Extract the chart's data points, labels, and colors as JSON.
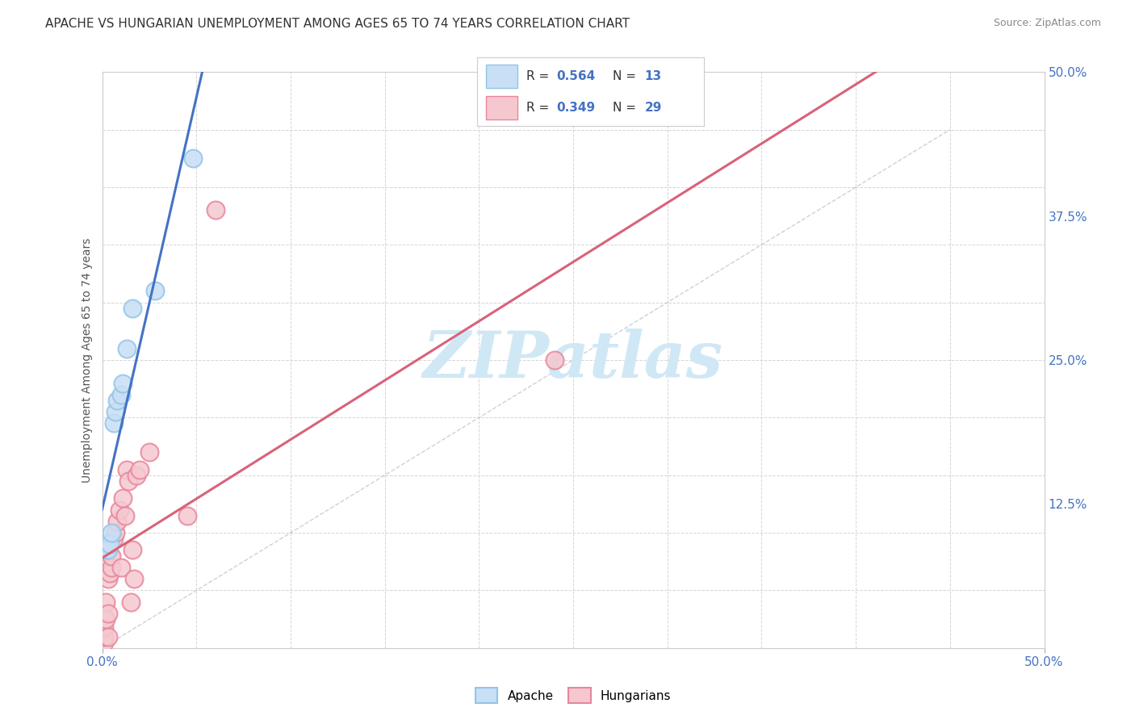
{
  "title": "APACHE VS HUNGARIAN UNEMPLOYMENT AMONG AGES 65 TO 74 YEARS CORRELATION CHART",
  "source": "Source: ZipAtlas.com",
  "ylabel": "Unemployment Among Ages 65 to 74 years",
  "xlim": [
    0.0,
    0.5
  ],
  "ylim": [
    0.0,
    0.5
  ],
  "xticks": [
    0.0,
    0.5
  ],
  "yticks": [
    0.0,
    0.125,
    0.25,
    0.375,
    0.5
  ],
  "xtick_labels": [
    "0.0%",
    "50.0%"
  ],
  "ytick_labels": [
    "",
    "12.5%",
    "25.0%",
    "37.5%",
    "50.0%"
  ],
  "apache_color": "#92C5E8",
  "apache_face": "#C8DFF5",
  "hungarian_color": "#E8869A",
  "hungarian_face": "#F5C8D0",
  "apache_line_color": "#4472C4",
  "hungarian_line_color": "#D9627A",
  "apache_R": "0.564",
  "apache_N": "13",
  "hungarian_R": "0.349",
  "hungarian_N": "29",
  "apache_x": [
    0.002,
    0.003,
    0.004,
    0.005,
    0.006,
    0.007,
    0.008,
    0.01,
    0.011,
    0.013,
    0.016,
    0.028,
    0.048
  ],
  "apache_y": [
    0.085,
    0.085,
    0.09,
    0.1,
    0.195,
    0.205,
    0.215,
    0.22,
    0.23,
    0.26,
    0.295,
    0.31,
    0.425
  ],
  "hungarian_x": [
    0.001,
    0.001,
    0.001,
    0.002,
    0.002,
    0.003,
    0.003,
    0.003,
    0.004,
    0.005,
    0.005,
    0.006,
    0.007,
    0.008,
    0.009,
    0.01,
    0.011,
    0.012,
    0.013,
    0.014,
    0.015,
    0.016,
    0.017,
    0.018,
    0.02,
    0.025,
    0.045,
    0.06,
    0.24
  ],
  "hungarian_y": [
    0.005,
    0.01,
    0.018,
    0.025,
    0.04,
    0.01,
    0.03,
    0.06,
    0.065,
    0.07,
    0.08,
    0.095,
    0.1,
    0.11,
    0.12,
    0.07,
    0.13,
    0.115,
    0.155,
    0.145,
    0.04,
    0.085,
    0.06,
    0.15,
    0.155,
    0.17,
    0.115,
    0.38,
    0.25
  ],
  "watermark": "ZIPatlas",
  "bg_color": "#ffffff",
  "grid_color": "#d5d5d5",
  "label_color": "#4472C4",
  "title_color": "#333333",
  "source_color": "#888888",
  "diag_line_color": "#AAAACC",
  "inner_grid_ticks": [
    0.0,
    0.05,
    0.1,
    0.15,
    0.2,
    0.25,
    0.3,
    0.35,
    0.4,
    0.45,
    0.5
  ]
}
